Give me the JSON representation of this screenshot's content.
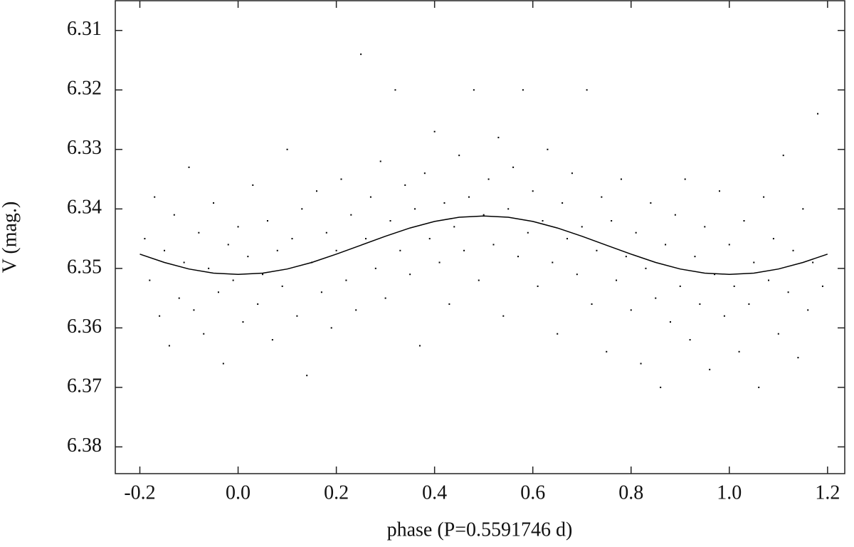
{
  "chart_data": {
    "type": "scatter",
    "x_label": "phase (P=0.5591746 d)",
    "y_label": "V (mag.)",
    "xlim": [
      -0.25,
      1.235
    ],
    "ylim": [
      6.305,
      6.3845
    ],
    "y_inverted": true,
    "xticks": [
      -0.2,
      {
        "value": 0.0,
        "label": "0.0"
      },
      0.2,
      0.4,
      0.6,
      0.8,
      {
        "value": 1.0,
        "label": "1.0"
      },
      1.2
    ],
    "yticks": [
      6.31,
      6.32,
      6.33,
      6.34,
      6.35,
      6.36,
      6.37,
      6.38
    ],
    "points": {
      "color": "#000000",
      "x": [
        -0.19,
        -0.18,
        -0.17,
        -0.16,
        -0.15,
        -0.14,
        -0.13,
        -0.12,
        -0.11,
        -0.1,
        -0.09,
        -0.08,
        -0.07,
        -0.06,
        -0.05,
        -0.04,
        -0.03,
        -0.02,
        -0.01,
        0.0,
        0.01,
        0.02,
        0.03,
        0.04,
        0.05,
        0.06,
        0.07,
        0.08,
        0.09,
        0.1,
        0.11,
        0.12,
        0.13,
        0.14,
        0.15,
        0.16,
        0.17,
        0.18,
        0.19,
        0.2,
        0.21,
        0.22,
        0.23,
        0.24,
        0.25,
        0.26,
        0.27,
        0.28,
        0.29,
        0.3,
        0.31,
        0.32,
        0.33,
        0.34,
        0.35,
        0.36,
        0.37,
        0.38,
        0.39,
        0.4,
        0.41,
        0.42,
        0.43,
        0.44,
        0.45,
        0.46,
        0.47,
        0.48,
        0.49,
        0.5,
        0.51,
        0.52,
        0.53,
        0.54,
        0.55,
        0.56,
        0.57,
        0.58,
        0.59,
        0.6,
        0.61,
        0.62,
        0.63,
        0.64,
        0.65,
        0.66,
        0.67,
        0.68,
        0.69,
        0.7,
        0.71,
        0.72,
        0.73,
        0.74,
        0.75,
        0.76,
        0.77,
        0.78,
        0.79,
        0.8,
        0.81,
        0.82,
        0.83,
        0.84,
        0.85,
        0.86,
        0.87,
        0.88,
        0.89,
        0.9,
        0.91,
        0.92,
        0.93,
        0.94,
        0.95,
        0.96,
        0.97,
        0.98,
        0.99,
        1.0,
        1.01,
        1.02,
        1.03,
        1.04,
        1.05,
        1.06,
        1.07,
        1.08,
        1.09,
        1.1,
        1.11,
        1.12,
        1.13,
        1.14,
        1.15,
        1.16,
        1.17,
        1.18,
        1.19
      ],
      "y": [
        6.345,
        6.352,
        6.338,
        6.358,
        6.347,
        6.363,
        6.341,
        6.355,
        6.349,
        6.333,
        6.357,
        6.344,
        6.361,
        6.35,
        6.339,
        6.354,
        6.366,
        6.346,
        6.352,
        6.343,
        6.359,
        6.348,
        6.336,
        6.356,
        6.351,
        6.342,
        6.362,
        6.347,
        6.353,
        6.33,
        6.345,
        6.358,
        6.34,
        6.368,
        6.349,
        6.337,
        6.354,
        6.344,
        6.36,
        6.347,
        6.335,
        6.352,
        6.341,
        6.357,
        6.314,
        6.345,
        6.338,
        6.35,
        6.332,
        6.355,
        6.342,
        6.32,
        6.347,
        6.336,
        6.351,
        6.34,
        6.363,
        6.334,
        6.345,
        6.327,
        6.349,
        6.339,
        6.356,
        6.343,
        6.331,
        6.347,
        6.338,
        6.32,
        6.352,
        6.341,
        6.335,
        6.346,
        6.328,
        6.358,
        6.34,
        6.333,
        6.348,
        6.32,
        6.344,
        6.337,
        6.353,
        6.342,
        6.33,
        6.349,
        6.361,
        6.339,
        6.345,
        6.334,
        6.351,
        6.343,
        6.32,
        6.356,
        6.347,
        6.338,
        6.364,
        6.342,
        6.352,
        6.335,
        6.348,
        6.357,
        6.344,
        6.366,
        6.35,
        6.339,
        6.355,
        6.37,
        6.346,
        6.359,
        6.341,
        6.353,
        6.335,
        6.362,
        6.348,
        6.356,
        6.343,
        6.367,
        6.351,
        6.337,
        6.358,
        6.346,
        6.353,
        6.364,
        6.342,
        6.356,
        6.349,
        6.37,
        6.338,
        6.352,
        6.345,
        6.361,
        6.331,
        6.354,
        6.347,
        6.365,
        6.34,
        6.357,
        6.349,
        6.324,
        6.353
      ]
    },
    "fit": {
      "color": "#000000",
      "x": [
        -0.2,
        -0.15,
        -0.1,
        -0.05,
        0.0,
        0.05,
        0.1,
        0.15,
        0.2,
        0.25,
        0.3,
        0.35,
        0.4,
        0.45,
        0.5,
        0.55,
        0.6,
        0.65,
        0.7,
        0.75,
        0.8,
        0.85,
        0.9,
        0.95,
        1.0,
        1.05,
        1.1,
        1.15,
        1.2
      ],
      "y": [
        6.3476,
        6.349,
        6.3501,
        6.3508,
        6.351,
        6.3508,
        6.3501,
        6.349,
        6.3476,
        6.3461,
        6.3446,
        6.3432,
        6.3421,
        6.3414,
        6.3412,
        6.3414,
        6.3421,
        6.3432,
        6.3446,
        6.3461,
        6.3476,
        6.349,
        6.3501,
        6.3508,
        6.351,
        6.3508,
        6.3501,
        6.349,
        6.3476
      ]
    }
  }
}
